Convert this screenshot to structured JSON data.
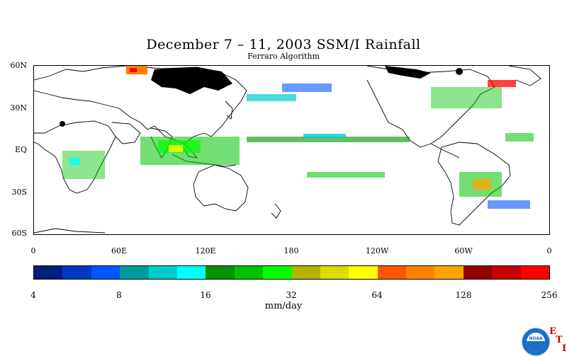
{
  "title": "December 7 – 11, 2003 SSM/I Rainfall",
  "subtitle": "Ferraro Algorithm",
  "map": {
    "lat_labels": [
      "60N",
      "30N",
      "EQ",
      "30S",
      "60S"
    ],
    "lon_labels": [
      "0",
      "60E",
      "120E",
      "180",
      "120W",
      "60W",
      "0"
    ]
  },
  "colorbar": {
    "colors": [
      "#00207f",
      "#0037c4",
      "#0056ff",
      "#009b9b",
      "#00cccc",
      "#00ffff",
      "#009200",
      "#00c300",
      "#00ff00",
      "#b4b400",
      "#dcdc00",
      "#ffff00",
      "#ff5500",
      "#ff8000",
      "#ffa500",
      "#960000",
      "#c80000",
      "#ff0000"
    ],
    "labels": [
      "4",
      "8",
      "16",
      "32",
      "64",
      "128",
      "256"
    ],
    "units": "mm/day"
  },
  "logo": {
    "text": "NOAA",
    "letters": [
      "E",
      "T",
      "I"
    ]
  }
}
